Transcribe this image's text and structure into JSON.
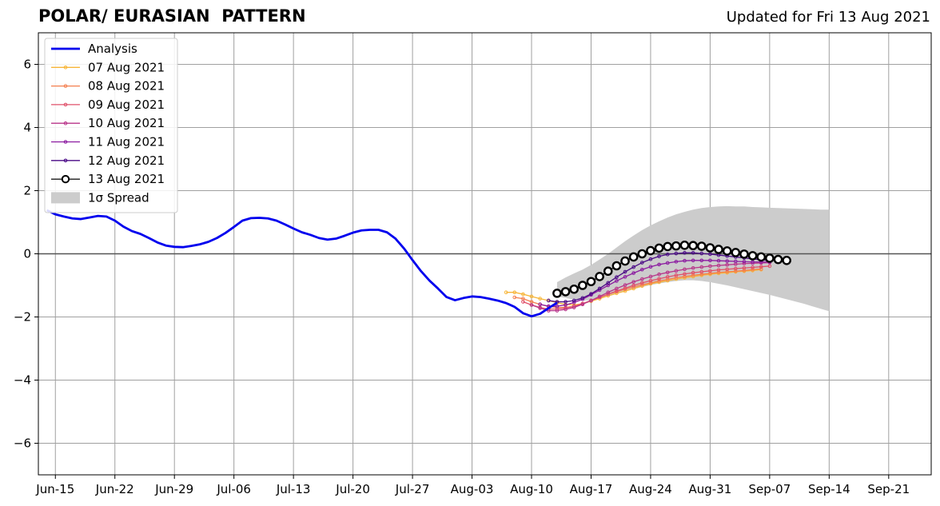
{
  "title": "POLAR/ EURASIAN  PATTERN",
  "subtitle": "Updated for Fri 13 Aug 2021",
  "chart_data": {
    "type": "line",
    "title": "POLAR/ EURASIAN  PATTERN",
    "xlabel": "",
    "ylabel": "",
    "xlim": [
      "2021-06-13",
      "2021-09-26"
    ],
    "ylim": [
      -7,
      7
    ],
    "grid": true,
    "legend_position": "top-left",
    "x_ticks": [
      "2021-06-15",
      "2021-06-22",
      "2021-06-29",
      "2021-07-06",
      "2021-07-13",
      "2021-07-20",
      "2021-07-27",
      "2021-08-03",
      "2021-08-10",
      "2021-08-17",
      "2021-08-24",
      "2021-08-31",
      "2021-09-07",
      "2021-09-14",
      "2021-09-21"
    ],
    "x_tick_labels": [
      "Jun-15",
      "Jun-22",
      "Jun-29",
      "Jul-06",
      "Jul-13",
      "Jul-20",
      "Jul-27",
      "Aug-03",
      "Aug-10",
      "Aug-17",
      "Aug-24",
      "Aug-31",
      "Sep-07",
      "Sep-14",
      "Sep-21"
    ],
    "y_ticks": [
      -6,
      -4,
      -2,
      0,
      2,
      4,
      6
    ],
    "y_tick_labels": [
      "−6",
      "−4",
      "−2",
      "0",
      "2",
      "4",
      "6"
    ],
    "legend": [
      "Analysis",
      "07 Aug 2021",
      "08 Aug 2021",
      "09 Aug 2021",
      "10 Aug 2021",
      "11 Aug 2021",
      "12 Aug 2021",
      "13 Aug 2021",
      "1σ Spread"
    ],
    "analysis": {
      "name": "Analysis",
      "color": "#0000ee",
      "start": "2021-06-14",
      "values": [
        1.38,
        1.25,
        1.18,
        1.12,
        1.1,
        1.15,
        1.2,
        1.18,
        1.05,
        0.86,
        0.72,
        0.63,
        0.5,
        0.36,
        0.26,
        0.22,
        0.21,
        0.25,
        0.3,
        0.38,
        0.5,
        0.66,
        0.85,
        1.05,
        1.13,
        1.14,
        1.12,
        1.05,
        0.93,
        0.8,
        0.68,
        0.6,
        0.5,
        0.45,
        0.48,
        0.57,
        0.67,
        0.74,
        0.76,
        0.76,
        0.68,
        0.48,
        0.17,
        -0.2,
        -0.55,
        -0.85,
        -1.1,
        -1.37,
        -1.47,
        -1.4,
        -1.35,
        -1.37,
        -1.42,
        -1.48,
        -1.56,
        -1.68,
        -1.88,
        -1.98,
        -1.9,
        -1.72,
        -1.55
      ]
    },
    "series": [
      {
        "name": "07 Aug 2021",
        "color": "#f7b538",
        "start": "2021-08-07",
        "values": [
          -1.22,
          -1.22,
          -1.28,
          -1.35,
          -1.42,
          -1.48,
          -1.55,
          -1.6,
          -1.62,
          -1.58,
          -1.5,
          -1.42,
          -1.33,
          -1.25,
          -1.18,
          -1.1,
          -1.02,
          -0.95,
          -0.9,
          -0.85,
          -0.8,
          -0.76,
          -0.72,
          -0.68,
          -0.65,
          -0.62,
          -0.6,
          -0.57,
          -0.55,
          -0.53,
          -0.5
        ]
      },
      {
        "name": "08 Aug 2021",
        "color": "#f47f4f",
        "start": "2021-08-08",
        "values": [
          -1.38,
          -1.42,
          -1.52,
          -1.6,
          -1.67,
          -1.7,
          -1.7,
          -1.66,
          -1.58,
          -1.48,
          -1.38,
          -1.28,
          -1.2,
          -1.12,
          -1.05,
          -0.98,
          -0.92,
          -0.86,
          -0.81,
          -0.76,
          -0.72,
          -0.68,
          -0.65,
          -0.62,
          -0.59,
          -0.57,
          -0.55,
          -0.53,
          -0.5,
          -0.48
        ]
      },
      {
        "name": "09 Aug 2021",
        "color": "#e0506a",
        "start": "2021-08-09",
        "values": [
          -1.52,
          -1.62,
          -1.7,
          -1.75,
          -1.75,
          -1.72,
          -1.66,
          -1.58,
          -1.48,
          -1.38,
          -1.28,
          -1.18,
          -1.09,
          -1.0,
          -0.92,
          -0.85,
          -0.79,
          -0.73,
          -0.68,
          -0.64,
          -0.6,
          -0.57,
          -0.54,
          -0.51,
          -0.49,
          -0.47,
          -0.45,
          -0.43,
          -0.41,
          -0.39
        ]
      },
      {
        "name": "10 Aug 2021",
        "color": "#b8358a",
        "start": "2021-08-10",
        "values": [
          -1.62,
          -1.72,
          -1.8,
          -1.8,
          -1.76,
          -1.7,
          -1.6,
          -1.48,
          -1.35,
          -1.22,
          -1.1,
          -0.99,
          -0.89,
          -0.8,
          -0.72,
          -0.65,
          -0.59,
          -0.54,
          -0.49,
          -0.45,
          -0.42,
          -0.39,
          -0.37,
          -0.35,
          -0.33,
          -0.31,
          -0.3,
          -0.29,
          -0.28
        ]
      },
      {
        "name": "11 Aug 2021",
        "color": "#8b1aa0",
        "start": "2021-08-11",
        "values": [
          -1.6,
          -1.66,
          -1.66,
          -1.62,
          -1.54,
          -1.44,
          -1.3,
          -1.15,
          -1.0,
          -0.86,
          -0.73,
          -0.61,
          -0.5,
          -0.41,
          -0.34,
          -0.29,
          -0.25,
          -0.22,
          -0.21,
          -0.21,
          -0.21,
          -0.22,
          -0.23,
          -0.24,
          -0.25,
          -0.26,
          -0.26,
          -0.26
        ]
      },
      {
        "name": "12 Aug 2021",
        "color": "#4a0a86",
        "start": "2021-08-12",
        "values": [
          -1.48,
          -1.52,
          -1.52,
          -1.48,
          -1.4,
          -1.27,
          -1.1,
          -0.92,
          -0.74,
          -0.57,
          -0.42,
          -0.28,
          -0.17,
          -0.08,
          -0.02,
          0.01,
          0.03,
          0.03,
          0.01,
          -0.01,
          -0.04,
          -0.07,
          -0.1,
          -0.13,
          -0.16,
          -0.19,
          -0.21
        ]
      }
    ],
    "forecast": {
      "name": "13 Aug 2021",
      "color": "#000000",
      "start": "2021-08-13",
      "values": [
        -1.25,
        -1.2,
        -1.12,
        -1.0,
        -0.88,
        -0.72,
        -0.55,
        -0.38,
        -0.23,
        -0.1,
        0.0,
        0.1,
        0.18,
        0.23,
        0.25,
        0.27,
        0.26,
        0.24,
        0.19,
        0.14,
        0.09,
        0.04,
        -0.01,
        -0.06,
        -0.1,
        -0.14,
        -0.18,
        -0.21
      ]
    },
    "spread": {
      "name": "1σ Spread",
      "color": "#cccccc",
      "start": "2021-08-13",
      "upper": [
        -0.9,
        -0.75,
        -0.62,
        -0.5,
        -0.35,
        -0.18,
        0.0,
        0.2,
        0.4,
        0.58,
        0.75,
        0.9,
        1.03,
        1.15,
        1.25,
        1.33,
        1.4,
        1.45,
        1.48,
        1.5,
        1.51,
        1.5,
        1.5,
        1.48,
        1.47,
        1.46,
        1.45,
        1.44,
        1.43,
        1.42,
        1.41,
        1.4,
        1.4
      ],
      "lower": [
        -1.35,
        -1.4,
        -1.45,
        -1.48,
        -1.47,
        -1.42,
        -1.35,
        -1.27,
        -1.19,
        -1.12,
        -1.05,
        -0.99,
        -0.94,
        -0.9,
        -0.86,
        -0.84,
        -0.84,
        -0.86,
        -0.9,
        -0.95,
        -1.0,
        -1.06,
        -1.12,
        -1.18,
        -1.24,
        -1.3,
        -1.37,
        -1.44,
        -1.51,
        -1.58,
        -1.66,
        -1.74,
        -1.82
      ]
    }
  }
}
